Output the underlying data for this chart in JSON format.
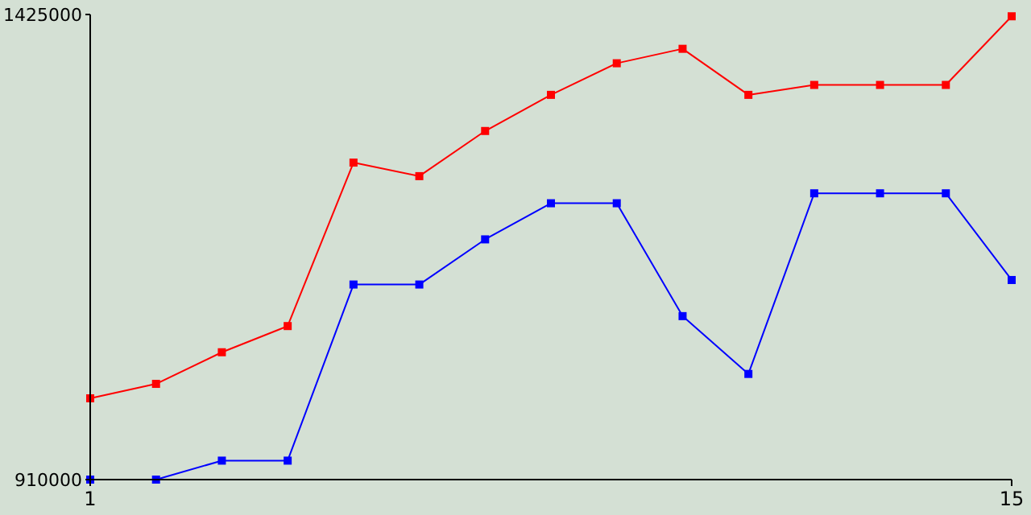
{
  "chart_data": {
    "type": "line",
    "x": [
      1,
      2,
      3,
      4,
      5,
      6,
      7,
      8,
      9,
      10,
      11,
      12,
      13,
      14,
      15
    ],
    "series": [
      {
        "color": "#ff0000",
        "values": [
          1000000,
          1016000,
          1051000,
          1080000,
          1261000,
          1246000,
          1296000,
          1336000,
          1371000,
          1387000,
          1336000,
          1347000,
          1347000,
          1347000,
          1423000
        ]
      },
      {
        "color": "#0000ff",
        "values": [
          910000,
          910000,
          931000,
          931000,
          1126000,
          1126000,
          1176000,
          1216000,
          1216000,
          1091000,
          1027000,
          1227000,
          1227000,
          1227000,
          1131000
        ]
      }
    ],
    "xlim": [
      1,
      15
    ],
    "xticks": [
      1,
      15
    ],
    "ylim": [
      910000,
      1425000
    ],
    "yticks": [
      910000,
      1425000
    ],
    "marker": "square",
    "line_style": "solid",
    "grid": false
  }
}
